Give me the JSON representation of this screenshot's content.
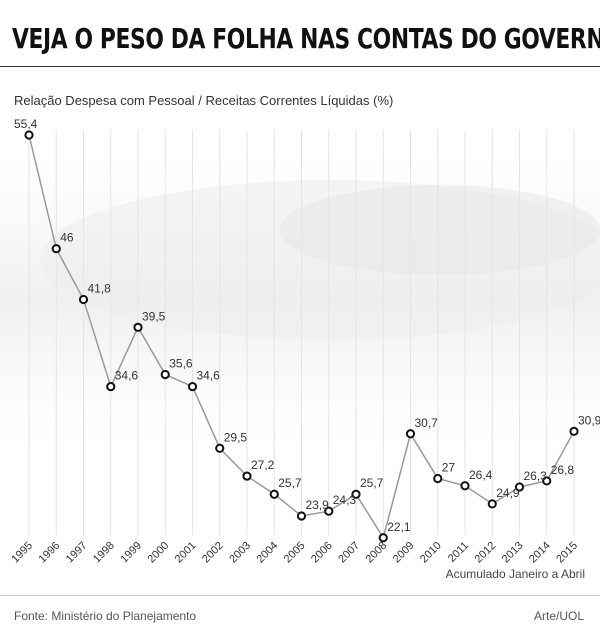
{
  "title": "VEJA O PESO DA FOLHA NAS CONTAS DO GOVERNO",
  "source": "Fonte: Ministério do Planejamento",
  "credit": "Arte/UOL",
  "chart_data": {
    "type": "line",
    "subtitle": "Relação Despesa com Pessoal / Receitas Correntes Líquidas (%)",
    "note": "Acumulado Janeiro a Abril",
    "x": [
      "1995",
      "1996",
      "1997",
      "1998",
      "1999",
      "2000",
      "2001",
      "2002",
      "2003",
      "2004",
      "2005",
      "2006",
      "2007",
      "2008",
      "2009",
      "2010",
      "2011",
      "2012",
      "2013",
      "2014",
      "2015"
    ],
    "values": [
      55.4,
      46,
      41.8,
      34.6,
      39.5,
      35.6,
      34.6,
      29.5,
      27.2,
      25.7,
      23.9,
      24.3,
      25.7,
      22.1,
      30.7,
      27,
      26.4,
      24.9,
      26.3,
      26.8,
      30.9
    ],
    "labels": [
      "55,4",
      "46",
      "41,8",
      "34,6",
      "39,5",
      "35,6",
      "34,6",
      "29,5",
      "27,2",
      "25,7",
      "23,9",
      "24,3",
      "25,7",
      "22,1",
      "30,7",
      "27",
      "26,4",
      "24,9",
      "26,3",
      "26,8",
      "30,9"
    ],
    "colors": {
      "line": "#999999",
      "marker_stroke": "#111111",
      "marker_fill": "#ffffff",
      "grid": "#e4e4e4",
      "text": "#333333"
    },
    "grid": true
  }
}
